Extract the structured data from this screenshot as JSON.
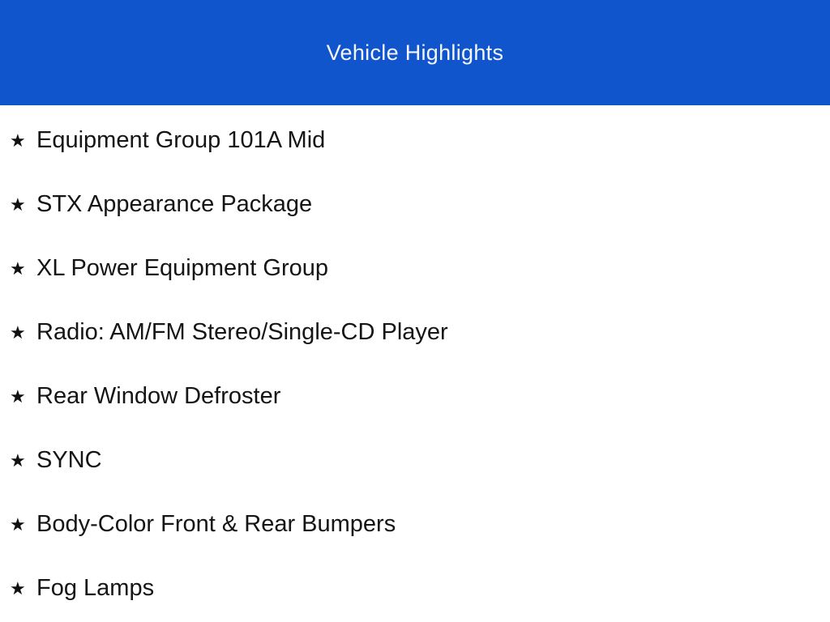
{
  "header": {
    "title": "Vehicle Highlights",
    "background_color": "#1155CC",
    "title_color": "#F4F7FC"
  },
  "list": {
    "bullet_icon": "star-icon",
    "bullet_glyph": "★",
    "items": [
      "Equipment Group 101A Mid",
      "STX Appearance Package",
      "XL Power Equipment Group",
      "Radio: AM/FM Stereo/Single-CD Player",
      "Rear Window Defroster",
      "SYNC",
      "Body-Color Front & Rear Bumpers",
      "Fog Lamps"
    ]
  }
}
